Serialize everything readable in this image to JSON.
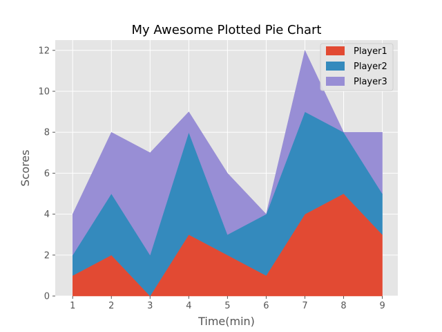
{
  "chart_data": {
    "type": "area",
    "stacked": true,
    "title": "My Awesome Plotted Pie Chart",
    "xlabel": "Time(min)",
    "ylabel": "Scores",
    "x": [
      1,
      2,
      3,
      4,
      5,
      6,
      7,
      8,
      9
    ],
    "xticks": [
      "1",
      "2",
      "3",
      "4",
      "5",
      "6",
      "7",
      "8",
      "9"
    ],
    "yticks": [
      "0",
      "2",
      "4",
      "6",
      "8",
      "10",
      "12"
    ],
    "xlim": [
      0.55,
      9.4
    ],
    "ylim": [
      0,
      12.5
    ],
    "grid": true,
    "legend_position": "top-right",
    "series": [
      {
        "name": "Player1",
        "values": [
          1,
          2,
          0,
          3,
          2,
          1,
          4,
          5,
          3
        ],
        "color": "#E24A33"
      },
      {
        "name": "Player2",
        "values": [
          1,
          3,
          2,
          5,
          1,
          3,
          5,
          3,
          2
        ],
        "color": "#348ABD"
      },
      {
        "name": "Player3",
        "values": [
          2,
          3,
          5,
          1,
          3,
          0,
          3,
          0,
          3
        ],
        "color": "#988ED5"
      }
    ],
    "style": {
      "plot_background": "#E5E5E5",
      "grid_color": "#FFFFFF"
    }
  }
}
